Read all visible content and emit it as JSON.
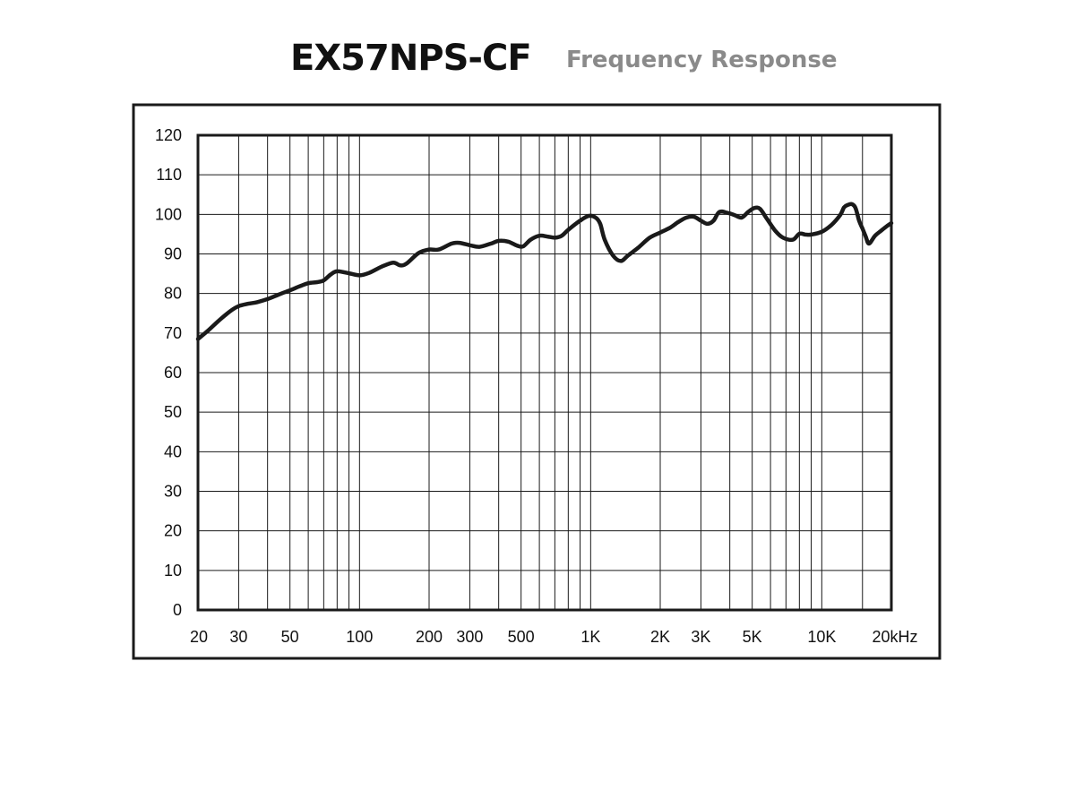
{
  "header": {
    "model": "EX57NPS-CF",
    "subtitle": "Frequency Response"
  },
  "chart_data": {
    "type": "line",
    "title": "EX57NPS-CF",
    "subtitle": "Frequency Response",
    "xlabel": "",
    "ylabel": "",
    "x_scale": "log",
    "xlim": [
      20,
      20000
    ],
    "ylim": [
      0,
      120
    ],
    "grid": true,
    "y_ticks": [
      0,
      10,
      20,
      30,
      40,
      50,
      60,
      70,
      80,
      90,
      100,
      110,
      120
    ],
    "y_tick_labels": [
      "0",
      "10",
      "20",
      "30",
      "40",
      "50",
      "60",
      "70",
      "80",
      "90",
      "100",
      "110",
      "120"
    ],
    "x_tick_values": [
      20,
      30,
      50,
      100,
      200,
      300,
      500,
      1000,
      2000,
      3000,
      5000,
      10000,
      20000
    ],
    "x_tick_labels": [
      "20",
      "30",
      "50",
      "100",
      "200",
      "300",
      "500",
      "1K",
      "2K",
      "3K",
      "5K",
      "10K",
      "20kHz"
    ],
    "x_gridlines": [
      30,
      40,
      50,
      60,
      70,
      80,
      90,
      100,
      200,
      300,
      400,
      500,
      600,
      700,
      800,
      900,
      1000,
      2000,
      3000,
      4000,
      5000,
      6000,
      7000,
      8000,
      9000,
      10000,
      15000
    ],
    "series": [
      {
        "color": "#1a1a1a",
        "x": [
          20,
          22,
          25,
          28,
          30,
          33,
          36,
          40,
          45,
          50,
          55,
          60,
          66,
          70,
          75,
          80,
          90,
          100,
          110,
          125,
          140,
          150,
          160,
          180,
          200,
          220,
          250,
          270,
          300,
          330,
          370,
          400,
          440,
          480,
          510,
          550,
          600,
          650,
          700,
          750,
          800,
          900,
          980,
          1050,
          1100,
          1150,
          1250,
          1350,
          1450,
          1600,
          1800,
          2000,
          2200,
          2400,
          2600,
          2800,
          3000,
          3200,
          3400,
          3600,
          3900,
          4200,
          4500,
          4800,
          5100,
          5400,
          5800,
          6300,
          6800,
          7500,
          8000,
          8500,
          9000,
          10000,
          11000,
          12000,
          12500,
          13000,
          13500,
          14000,
          14500,
          15000,
          15500,
          16000,
          17000,
          18000,
          19000,
          20000
        ],
        "y": [
          68.5,
          70.5,
          73.5,
          75.8,
          76.8,
          77.4,
          77.8,
          78.6,
          79.8,
          80.8,
          81.8,
          82.6,
          82.9,
          83.3,
          84.8,
          85.6,
          85.1,
          84.6,
          85.2,
          86.8,
          87.8,
          87.1,
          87.6,
          90.2,
          91.1,
          91.1,
          92.6,
          92.8,
          92.2,
          91.8,
          92.6,
          93.3,
          93.1,
          92.1,
          91.9,
          93.6,
          94.6,
          94.4,
          94.1,
          94.6,
          96.1,
          98.4,
          99.6,
          99.2,
          97.6,
          93.6,
          89.6,
          88.2,
          89.6,
          91.5,
          94.1,
          95.4,
          96.6,
          98.1,
          99.2,
          99.4,
          98.4,
          97.6,
          98.4,
          100.6,
          100.4,
          99.8,
          99.2,
          100.6,
          101.6,
          101.4,
          98.8,
          95.8,
          94.1,
          93.6,
          95.1,
          94.9,
          94.9,
          95.6,
          97.3,
          99.8,
          101.8,
          102.4,
          102.6,
          101.6,
          98.4,
          96.4,
          94.4,
          92.6,
          94.6,
          95.8,
          96.9,
          97.8
        ]
      }
    ]
  }
}
